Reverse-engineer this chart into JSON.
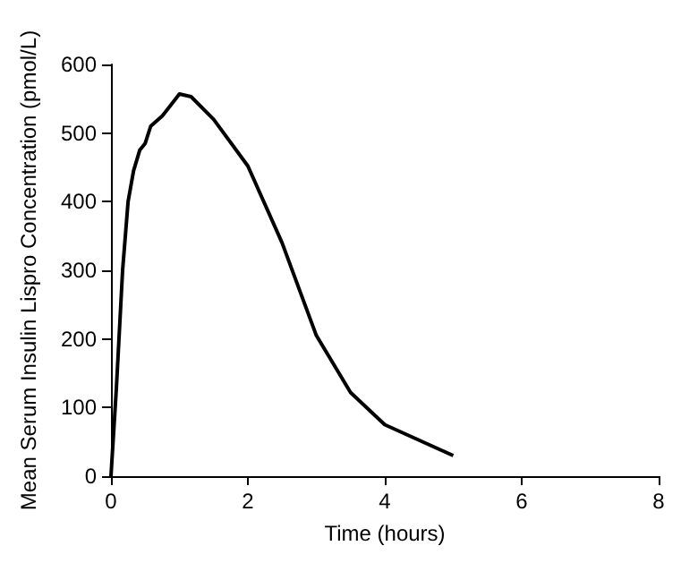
{
  "chart_data": {
    "type": "line",
    "xlabel": "Time (hours)",
    "ylabel": "Mean Serum Insulin Lispro Concentration (pmol/L)",
    "x": [
      0,
      0.08,
      0.17,
      0.25,
      0.33,
      0.42,
      0.5,
      0.58,
      0.75,
      0.83,
      1,
      1.17,
      1.5,
      2,
      2.5,
      3,
      3.5,
      4,
      5
    ],
    "series": [
      {
        "color": "#000000",
        "values": [
          0,
          130,
          300,
          400,
          445,
          475,
          485,
          510,
          525,
          535,
          557,
          553,
          520,
          452,
          340,
          205,
          122,
          75,
          30
        ]
      }
    ],
    "xlim": [
      0,
      8
    ],
    "xticks": [
      0,
      2,
      4,
      6,
      8
    ],
    "ylim": [
      0,
      600
    ],
    "yticks": [
      0,
      100,
      200,
      300,
      400,
      500,
      600
    ],
    "grid": false,
    "marker": "none",
    "line_style": "solid"
  }
}
